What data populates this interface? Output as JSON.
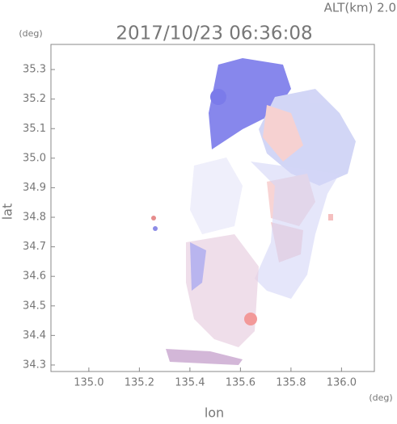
{
  "chart_data": {
    "type": "radar-map",
    "title": "2017/10/23 06:36:08",
    "subtitle": "ALT(km) 2.0",
    "x_label": "lon",
    "y_label": "lat",
    "x_unit": "(deg)",
    "y_unit": "(deg)",
    "xlim": [
      134.85,
      136.13
    ],
    "ylim": [
      34.278,
      35.385
    ],
    "xticks": [
      {
        "value": 135.0,
        "label": "135.0"
      },
      135.2,
      135.4,
      135.6,
      135.8,
      {
        "value": 136.0,
        "label": "136.0"
      }
    ],
    "yticks": [
      34.3,
      34.4,
      34.5,
      34.6,
      34.7,
      34.8,
      34.9,
      {
        "value": 35.0,
        "label": "35.0"
      },
      35.1,
      35.2,
      35.3
    ]
  }
}
